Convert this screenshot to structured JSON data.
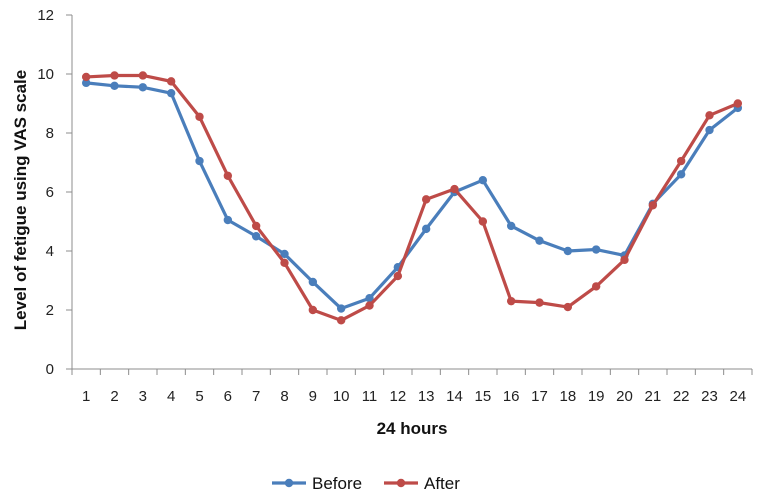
{
  "chart_data": {
    "type": "line",
    "title": "",
    "xlabel": "24 hours",
    "ylabel": "Level of fetigue using VAS scale",
    "categories": [
      "1",
      "2",
      "3",
      "4",
      "5",
      "6",
      "7",
      "8",
      "9",
      "10",
      "11",
      "12",
      "13",
      "14",
      "15",
      "16",
      "17",
      "18",
      "19",
      "20",
      "21",
      "22",
      "23",
      "24"
    ],
    "ylim": [
      0,
      12
    ],
    "yticks": [
      "0",
      "2",
      "4",
      "6",
      "8",
      "10",
      "12"
    ],
    "grid": false,
    "legend_position": "bottom",
    "series": [
      {
        "name": "Before",
        "color": "#4A7EBB",
        "values": [
          9.7,
          9.6,
          9.55,
          9.35,
          7.05,
          5.05,
          4.5,
          3.9,
          2.95,
          2.05,
          2.4,
          3.45,
          4.75,
          6.0,
          6.4,
          4.85,
          4.35,
          4.0,
          4.05,
          3.85,
          5.6,
          6.6,
          8.1,
          8.85
        ]
      },
      {
        "name": "After",
        "color": "#BE4B48",
        "values": [
          9.9,
          9.95,
          9.95,
          9.75,
          8.55,
          6.55,
          4.85,
          3.6,
          2.0,
          1.65,
          2.15,
          3.15,
          5.75,
          6.1,
          5.0,
          2.3,
          2.25,
          2.1,
          2.8,
          3.7,
          5.55,
          7.05,
          8.6,
          9.0
        ]
      }
    ]
  }
}
